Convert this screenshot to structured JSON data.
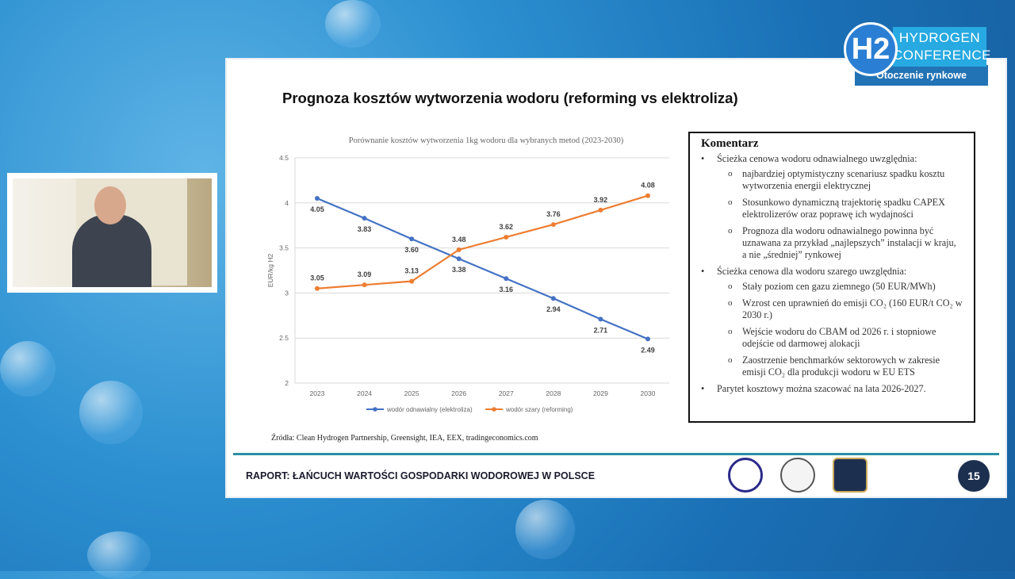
{
  "branding": {
    "logo_text": "H2",
    "name_line1": "HYDROGEN",
    "name_line2": "CONFERENCE",
    "section": "Otoczenie rynkowe"
  },
  "slide": {
    "title": "Prognoza kosztów wytworzenia wodoru (reforming vs elektroliza)",
    "source": "Źródła: Clean Hydrogen Partnership, Greensight, IEA, EEX, tradingeconomics.com",
    "footer": "RAPORT: ŁAŃCUCH WARTOŚCI GOSPODARKI WODOROWEJ W POLSCE",
    "page_number": "15",
    "comment": {
      "heading": "Komentarz",
      "items": [
        {
          "text": "Ścieżka cenowa wodoru odnawialnego uwzględnia:",
          "sub": [
            "najbardziej optymistyczny scenariusz spadku kosztu wytworzenia energii elektrycznej",
            "Stosunkowo dynamiczną trajektorię spadku CAPEX elektrolizerów oraz poprawę ich wydajności",
            "Prognoza dla wodoru odnawialnego powinna być uznawana za przykład „najlepszych” instalacji w kraju, a nie „średniej” rynkowej"
          ]
        },
        {
          "text": "Ścieżka cenowa dla wodoru szarego uwzględnia:",
          "sub": [
            "Stały poziom cen gazu ziemnego (50 EUR/MWh)",
            "Wzrost cen uprawnień do emisji CO₂ (160 EUR/t CO₂ w 2030 r.)",
            "Wejście wodoru do CBAM od 2026 r. i stopniowe odejście od darmowej alokacji",
            "Zaostrzenie benchmarków sektorowych w zakresie emisji CO₂ dla produkcji wodoru w EU ETS"
          ]
        },
        {
          "text": "Parytet kosztowy można szacować na lata 2026-2027.",
          "sub": []
        }
      ]
    }
  },
  "chart_data": {
    "type": "line",
    "title": "Porównanie kosztów wytworzenia 1kg wodoru dla wybranych metod (2023-2030)",
    "xlabel": "",
    "ylabel": "EUR/kg H2",
    "categories": [
      "2023",
      "2024",
      "2025",
      "2026",
      "2027",
      "2028",
      "2029",
      "2030"
    ],
    "ylim": [
      2,
      4.5
    ],
    "yticks": [
      "2",
      "2.5",
      "3",
      "3.5",
      "4",
      "4.5"
    ],
    "grid": true,
    "legend": "bottom",
    "series": [
      {
        "name": "wodór odnawialny (elektroliza)",
        "color": "#4472c4",
        "values": [
          4.05,
          3.83,
          3.6,
          3.38,
          3.16,
          2.94,
          2.71,
          2.49
        ],
        "labels": [
          "4.05",
          "3.83",
          "3.60",
          "3.38",
          "3.16",
          "2.94",
          "2.71",
          "2.49"
        ]
      },
      {
        "name": "wodór szary (reforming)",
        "color": "#ed7d31",
        "values": [
          3.05,
          3.09,
          3.13,
          3.48,
          3.62,
          3.76,
          3.92,
          4.08
        ],
        "labels": [
          "3.05",
          "3.09",
          "3.13",
          "3.48",
          "3.62",
          "3.76",
          "3.92",
          "4.08"
        ]
      }
    ]
  }
}
